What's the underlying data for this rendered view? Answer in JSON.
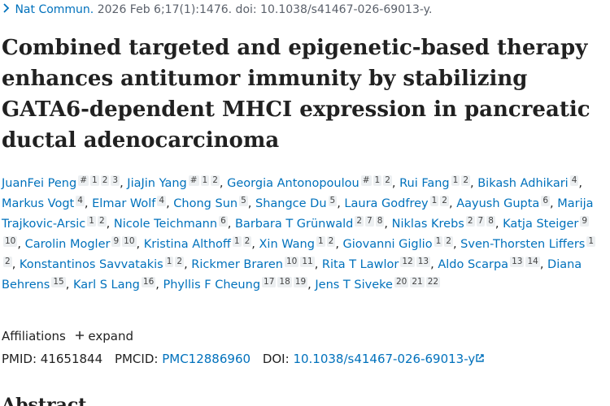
{
  "citation": {
    "journal": "Nat Commun.",
    "details": "2026 Feb 6;17(1):1476. doi: 10.1038/s41467-026-69013-y."
  },
  "title": "Combined targeted and epigenetic-based therapy enhances antitumor immunity by stabilizing GATA6-dependent MHCI expression in pancreatic ductal adenocarcinoma",
  "author_separator": ",",
  "authors": [
    {
      "name": "JuanFei Peng",
      "refs": [
        "#",
        "1",
        "2",
        "3"
      ]
    },
    {
      "name": "JiaJin Yang",
      "refs": [
        "#",
        "1",
        "2"
      ]
    },
    {
      "name": "Georgia Antonopoulou",
      "refs": [
        "#",
        "1",
        "2"
      ]
    },
    {
      "name": "Rui Fang",
      "refs": [
        "1",
        "2"
      ]
    },
    {
      "name": "Bikash Adhikari",
      "refs": [
        "4"
      ]
    },
    {
      "name": "Markus Vogt",
      "refs": [
        "4"
      ]
    },
    {
      "name": "Elmar Wolf",
      "refs": [
        "4"
      ]
    },
    {
      "name": "Chong Sun",
      "refs": [
        "5"
      ]
    },
    {
      "name": "Shangce Du",
      "refs": [
        "5"
      ]
    },
    {
      "name": "Laura Godfrey",
      "refs": [
        "1",
        "2"
      ]
    },
    {
      "name": "Aayush Gupta",
      "refs": [
        "6"
      ]
    },
    {
      "name": "Marija Trajkovic-Arsic",
      "refs": [
        "1",
        "2"
      ]
    },
    {
      "name": "Nicole Teichmann",
      "refs": [
        "6"
      ]
    },
    {
      "name": "Barbara T Grünwald",
      "refs": [
        "2",
        "7",
        "8"
      ]
    },
    {
      "name": "Niklas Krebs",
      "refs": [
        "2",
        "7",
        "8"
      ]
    },
    {
      "name": "Katja Steiger",
      "refs": [
        "9",
        "10"
      ]
    },
    {
      "name": "Carolin Mogler",
      "refs": [
        "9",
        "10"
      ]
    },
    {
      "name": "Kristina Althoff",
      "refs": [
        "1",
        "2"
      ]
    },
    {
      "name": "Xin Wang",
      "refs": [
        "1",
        "2"
      ]
    },
    {
      "name": "Giovanni Giglio",
      "refs": [
        "1",
        "2"
      ]
    },
    {
      "name": "Sven-Thorsten Liffers",
      "refs": [
        "1",
        "2"
      ]
    },
    {
      "name": "Konstantinos Savvatakis",
      "refs": [
        "1",
        "2"
      ]
    },
    {
      "name": "Rickmer Braren",
      "refs": [
        "10",
        "11"
      ]
    },
    {
      "name": "Rita T Lawlor",
      "refs": [
        "12",
        "13"
      ]
    },
    {
      "name": "Aldo Scarpa",
      "refs": [
        "13",
        "14"
      ]
    },
    {
      "name": "Diana Behrens",
      "refs": [
        "15"
      ]
    },
    {
      "name": "Karl S Lang",
      "refs": [
        "16"
      ]
    },
    {
      "name": "Phyllis F Cheung",
      "refs": [
        "17",
        "18",
        "19"
      ]
    },
    {
      "name": "Jens T Siveke",
      "refs": [
        "20",
        "21",
        "22"
      ]
    }
  ],
  "affiliations": {
    "label": "Affiliations",
    "toggle": "expand"
  },
  "identifiers": {
    "pmid_label": "PMID:",
    "pmid": "41651844",
    "pmcid_label": "PMCID:",
    "pmcid": "PMC12886960",
    "doi_label": "DOI:",
    "doi": "10.1038/s41467-026-69013-y"
  },
  "next_heading": "Abstract"
}
